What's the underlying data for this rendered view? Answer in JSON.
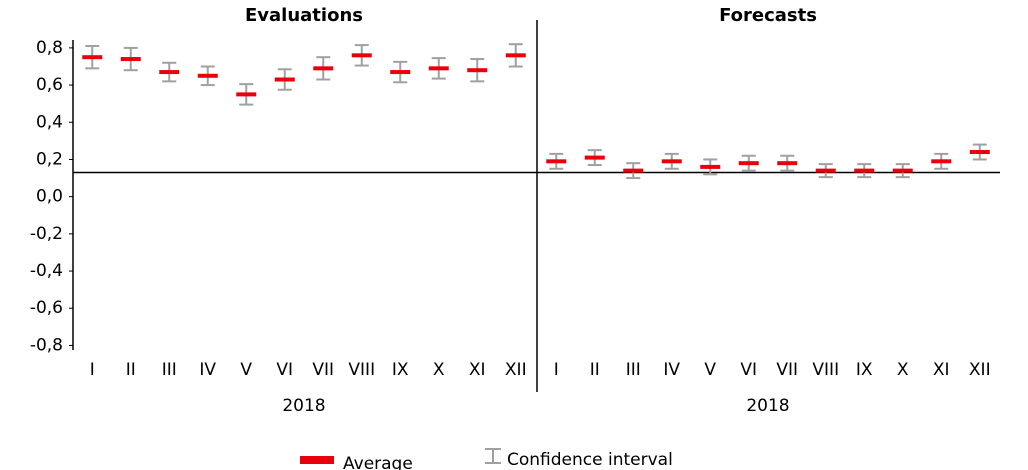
{
  "chart_data": [
    {
      "type": "errorbar",
      "title": "Evaluations",
      "xlabel": "2018",
      "categories": [
        "I",
        "II",
        "III",
        "IV",
        "V",
        "VI",
        "VII",
        "VIII",
        "IX",
        "X",
        "XI",
        "XII"
      ],
      "series": [
        {
          "name": "Average",
          "color": "#e8000b",
          "error_name": "Confidence interval",
          "error_color": "#a0a0a0",
          "values": [
            0.75,
            0.74,
            0.67,
            0.65,
            0.55,
            0.63,
            0.69,
            0.76,
            0.67,
            0.69,
            0.68,
            0.76
          ],
          "errors": [
            0.06,
            0.06,
            0.05,
            0.05,
            0.055,
            0.055,
            0.06,
            0.055,
            0.055,
            0.055,
            0.06,
            0.06
          ]
        }
      ],
      "ylim": [
        -0.83,
        0.95
      ],
      "yticks": [
        {
          "value": 0.8,
          "label": "0,8"
        },
        {
          "value": 0.6,
          "label": "0,6"
        },
        {
          "value": 0.4,
          "label": "0,4"
        },
        {
          "value": 0.2,
          "label": "0,2"
        },
        {
          "value": 0,
          "label": "0,0"
        },
        {
          "value": -0.2,
          "label": "-0,2"
        },
        {
          "value": -0.4,
          "label": "-0,4"
        },
        {
          "value": -0.6,
          "label": "-0,6"
        },
        {
          "value": -0.8,
          "label": "-0,8"
        }
      ],
      "hline": 0.13
    },
    {
      "type": "errorbar",
      "title": "Forecasts",
      "xlabel": "2018",
      "categories": [
        "I",
        "II",
        "III",
        "IV",
        "V",
        "VI",
        "VII",
        "VIII",
        "IX",
        "X",
        "XI",
        "XII"
      ],
      "series": [
        {
          "name": "Average",
          "color": "#e8000b",
          "error_color": "#a0a0a0",
          "values": [
            0.19,
            0.21,
            0.14,
            0.19,
            0.16,
            0.18,
            0.18,
            0.14,
            0.14,
            0.14,
            0.19,
            0.24
          ],
          "errors": [
            0.04,
            0.04,
            0.04,
            0.04,
            0.04,
            0.04,
            0.04,
            0.035,
            0.035,
            0.035,
            0.04,
            0.04
          ]
        }
      ]
    }
  ]
}
